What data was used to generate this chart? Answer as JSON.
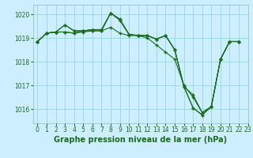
{
  "title": "Graphe pression niveau de la mer (hPa)",
  "bg_color": "#cceeff",
  "grid_color": "#99dddd",
  "line_color": "#1a6b1a",
  "marker_color": "#1a6b1a",
  "xlim": [
    -0.5,
    23
  ],
  "ylim": [
    1015.4,
    1020.4
  ],
  "yticks": [
    1016,
    1017,
    1018,
    1019,
    1020
  ],
  "xticks": [
    0,
    1,
    2,
    3,
    4,
    5,
    6,
    7,
    8,
    9,
    10,
    11,
    12,
    13,
    14,
    15,
    16,
    17,
    18,
    19,
    20,
    21,
    22,
    23
  ],
  "series": [
    [
      1018.85,
      1019.2,
      1019.25,
      1019.55,
      1019.3,
      1019.3,
      1019.35,
      1019.35,
      1020.05,
      1019.75,
      1019.15,
      1019.1,
      1019.1,
      1018.95,
      1019.1,
      1018.5,
      1016.95,
      1016.6,
      1015.85,
      1016.1,
      1018.1,
      1018.85,
      1018.85
    ],
    [
      1018.85,
      1019.2,
      1019.25,
      1019.55,
      1019.3,
      1019.3,
      1019.35,
      1019.35,
      1020.05,
      1019.75,
      1019.15,
      1019.1,
      1019.1,
      1018.95,
      1019.1,
      1018.5,
      1016.95,
      1016.05,
      1015.75,
      1016.1,
      1018.1,
      1018.85,
      1018.85
    ],
    [
      1018.85,
      1019.2,
      1019.25,
      1019.25,
      1019.2,
      1019.3,
      1019.3,
      1019.3,
      1020.05,
      1019.8,
      1019.15,
      1019.1,
      1019.1,
      1018.95,
      1019.1,
      1018.5,
      1016.95,
      1016.05,
      1015.75,
      1016.1,
      1018.1,
      1018.85,
      1018.85
    ],
    [
      1018.85,
      1019.2,
      1019.25,
      1019.25,
      1019.2,
      1019.25,
      1019.3,
      1019.3,
      1019.45,
      1019.2,
      1019.1,
      1019.1,
      1019.0,
      1018.7,
      1018.4,
      1018.1,
      1017.0,
      1016.5,
      1015.85,
      1016.1,
      1018.1,
      1018.85,
      1018.85
    ]
  ],
  "figsize": [
    3.2,
    2.0
  ],
  "dpi": 100,
  "tick_fontsize": 5.5,
  "label_fontsize": 7.0
}
